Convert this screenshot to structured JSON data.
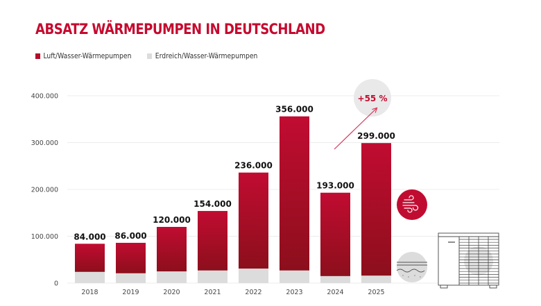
{
  "title": "ABSATZ WÄRMEPUMPEN IN DEUTSCHLAND",
  "legend": [
    {
      "label": "Luft/Wasser-Wärmepumpen",
      "color": "#b50d2c"
    },
    {
      "label": "Erdreich/Wasser-Wärmepumpen",
      "color": "#dcdcdc"
    }
  ],
  "annotation": {
    "label": "+55 %",
    "icon": "arrow-up-right-icon"
  },
  "icons": [
    "air-wind-icon",
    "ground-soil-icon",
    "heat-pump-unit-icon"
  ],
  "chart_data": {
    "type": "bar",
    "stacked": true,
    "title": "ABSATZ WÄRMEPUMPEN IN DEUTSCHLAND",
    "xlabel": "",
    "ylabel": "",
    "ylim": [
      0,
      400000
    ],
    "yticks": [
      0,
      100000,
      200000,
      300000,
      400000
    ],
    "ytick_labels": [
      "0",
      "100.000",
      "200.000",
      "300.000",
      "400.000"
    ],
    "grid": true,
    "legend_position": "top-left",
    "categories": [
      "2018",
      "2019",
      "2020",
      "2021",
      "2022",
      "2023",
      "2024",
      "2025"
    ],
    "totals": [
      84000,
      86000,
      120000,
      154000,
      236000,
      356000,
      193000,
      299000
    ],
    "total_labels": [
      "84.000",
      "86.000",
      "120.000",
      "154.000",
      "236.000",
      "356.000",
      "193.000",
      "299.000"
    ],
    "series": [
      {
        "name": "Erdreich/Wasser-Wärmepumpen",
        "color": "#dcdcdc",
        "values": [
          24000,
          21000,
          25000,
          27000,
          31000,
          27000,
          15000,
          16000
        ]
      },
      {
        "name": "Luft/Wasser-Wärmepumpen",
        "color": "#b50d2c",
        "values": [
          60000,
          65000,
          95000,
          127000,
          205000,
          329000,
          178000,
          283000
        ]
      }
    ],
    "annotations": [
      {
        "text": "+55 %",
        "from": "2024",
        "to": "2025"
      }
    ]
  }
}
